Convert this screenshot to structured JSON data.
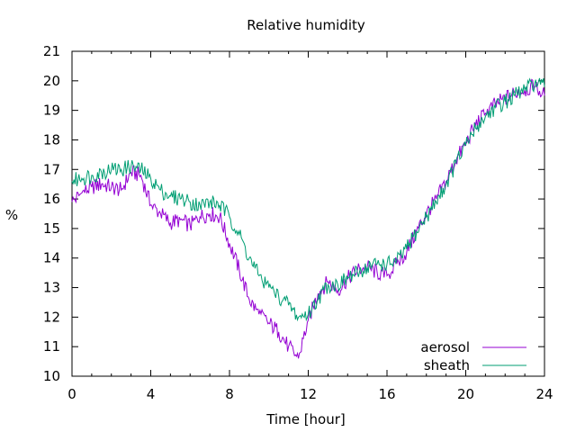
{
  "chart_data": {
    "type": "line",
    "title": "Relative humidity",
    "xlabel": "Time [hour]",
    "ylabel": "%",
    "xlim": [
      0,
      24
    ],
    "ylim": [
      10,
      21
    ],
    "xticks": [
      0,
      4,
      8,
      12,
      16,
      20,
      24
    ],
    "yticks": [
      10,
      11,
      12,
      13,
      14,
      15,
      16,
      17,
      18,
      19,
      20,
      21
    ],
    "grid": false,
    "legend": "bottom-right",
    "series": [
      {
        "name": "aerosol",
        "color": "#9400d3",
        "x": [
          0,
          0.5,
          1,
          1.5,
          2,
          2.5,
          3,
          3.5,
          4,
          4.5,
          5,
          5.5,
          6,
          6.5,
          7,
          7.5,
          8,
          8.5,
          9,
          9.5,
          10,
          10.5,
          11,
          11.5,
          12,
          12.5,
          13,
          13.5,
          14,
          14.5,
          15,
          15.5,
          16,
          16.5,
          17,
          17.5,
          18,
          18.5,
          19,
          19.5,
          20,
          20.5,
          21,
          21.5,
          22,
          22.5,
          23,
          23.5,
          24
        ],
        "values": [
          15.9,
          16.2,
          16.4,
          16.5,
          16.4,
          16.3,
          16.9,
          16.8,
          15.8,
          15.5,
          15.2,
          15.3,
          15.1,
          15.4,
          15.5,
          15.4,
          14.5,
          13.6,
          12.6,
          12.1,
          11.8,
          11.5,
          11.0,
          10.6,
          11.9,
          12.8,
          13.2,
          12.9,
          13.3,
          13.6,
          13.7,
          13.5,
          13.4,
          13.8,
          14.2,
          14.9,
          15.5,
          16.0,
          16.6,
          17.3,
          17.9,
          18.5,
          18.9,
          19.2,
          19.4,
          19.6,
          19.7,
          19.8,
          19.5
        ]
      },
      {
        "name": "sheath",
        "color": "#009e73",
        "x": [
          0,
          0.5,
          1,
          1.5,
          2,
          2.5,
          3,
          3.5,
          4,
          4.5,
          5,
          5.5,
          6,
          6.5,
          7,
          7.5,
          8,
          8.5,
          9,
          9.5,
          10,
          10.5,
          11,
          11.5,
          12,
          12.5,
          13,
          13.5,
          14,
          14.5,
          15,
          15.5,
          16,
          16.5,
          17,
          17.5,
          18,
          18.5,
          19,
          19.5,
          20,
          20.5,
          21,
          21.5,
          22,
          22.5,
          23,
          23.5,
          24
        ],
        "values": [
          16.6,
          16.7,
          16.8,
          16.9,
          17.0,
          17.0,
          17.1,
          17.0,
          16.7,
          16.3,
          16.1,
          16.0,
          15.9,
          15.8,
          15.9,
          15.8,
          15.4,
          14.8,
          14.0,
          13.4,
          13.0,
          12.7,
          12.4,
          12.0,
          12.1,
          12.6,
          13.1,
          13.1,
          13.3,
          13.5,
          13.7,
          13.8,
          13.8,
          13.9,
          14.3,
          14.9,
          15.4,
          15.9,
          16.5,
          17.2,
          17.8,
          18.4,
          18.8,
          19.1,
          19.3,
          19.5,
          19.7,
          19.9,
          19.8
        ]
      }
    ]
  }
}
